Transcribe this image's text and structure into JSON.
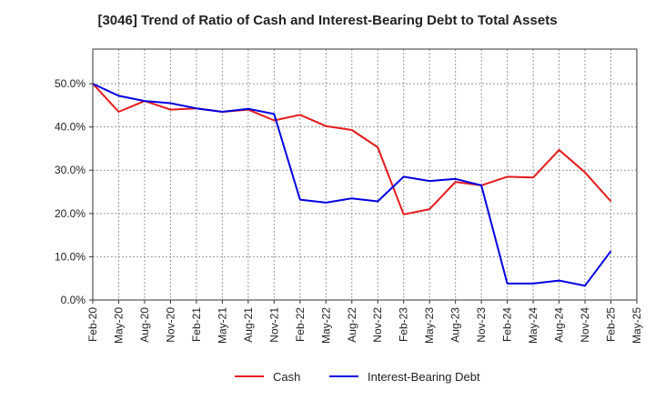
{
  "chart_data": {
    "type": "line",
    "title": "[3046]  Trend of Ratio of Cash and Interest-Bearing Debt to Total Assets",
    "xlabel": "",
    "ylabel": "",
    "x": [
      "Feb-20",
      "May-20",
      "Aug-20",
      "Nov-20",
      "Feb-21",
      "May-21",
      "Aug-21",
      "Nov-21",
      "Feb-22",
      "May-22",
      "Aug-22",
      "Nov-22",
      "Feb-23",
      "May-23",
      "Aug-23",
      "Nov-23",
      "Feb-24",
      "May-24",
      "Aug-24",
      "Nov-24",
      "Feb-25",
      "May-25"
    ],
    "y_ticks": [
      0,
      10,
      20,
      30,
      40,
      50
    ],
    "y_tick_labels": [
      "0.0%",
      "10.0%",
      "20.0%",
      "30.0%",
      "40.0%",
      "50.0%"
    ],
    "ylim": [
      0,
      58
    ],
    "grid": true,
    "legend_position": "bottom-center",
    "series": [
      {
        "name": "Cash",
        "color": "#e41a1c",
        "values": [
          50.0,
          43.5,
          46.0,
          44.0,
          44.3,
          43.5,
          44.0,
          41.5,
          42.8,
          40.2,
          39.3,
          35.3,
          19.8,
          21.0,
          27.3,
          26.5,
          28.5,
          28.3,
          34.7,
          29.5,
          22.8,
          null
        ]
      },
      {
        "name": "Interest-Bearing Debt",
        "color": "#0000e0",
        "values": [
          50.0,
          47.2,
          46.0,
          45.5,
          44.3,
          43.5,
          44.2,
          43.0,
          23.2,
          22.5,
          23.5,
          22.8,
          28.5,
          27.5,
          28.0,
          26.5,
          3.8,
          3.8,
          4.5,
          3.3,
          11.3,
          null
        ]
      }
    ]
  }
}
